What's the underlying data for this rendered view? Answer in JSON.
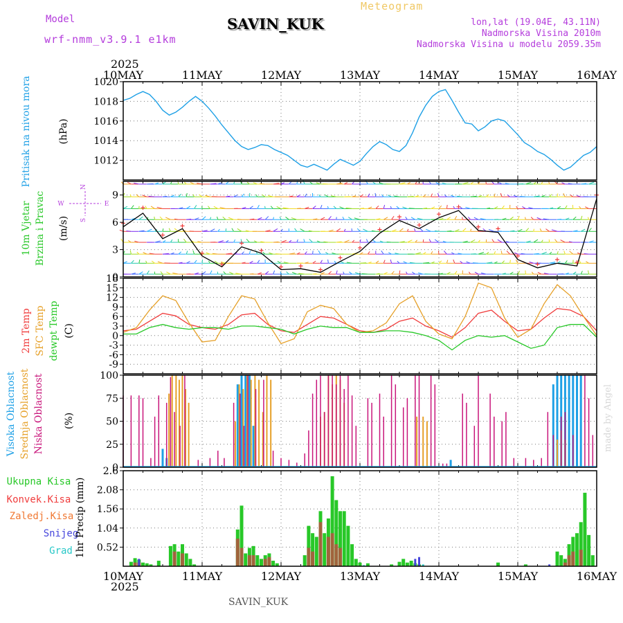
{
  "header": {
    "model_label": "Model",
    "model_name": "wrf-nmm_v3.9.1 e1km",
    "station": "SAVIN_KUK",
    "title": "Meteogram",
    "lonlat": "lon,lat (19.04E, 43.11N)",
    "elevation": "Nadmorska Visina 2010m",
    "model_elevation": "Nadmorska Visina u modelu 2059.35m",
    "year": "2025",
    "watermark": "made by Angel",
    "footer_station": "SAVIN_KUK"
  },
  "colors": {
    "pressure": "#1ea0e6",
    "temp2m": "#f03c3c",
    "sfc": "#e6a028",
    "dewpt": "#28c828",
    "high_cloud": "#1ea0e6",
    "mid_cloud": "#e6a028",
    "low_cloud": "#c8147a",
    "total_precip": "#28c828",
    "convective": "#f03c3c",
    "freezing": "#f07832",
    "snow": "#4646dc",
    "hail": "#28c8c8",
    "header_purple": "#b43cdc",
    "header_orange": "#f0c864"
  },
  "chart_data": [
    {
      "type": "line",
      "panel": "pressure",
      "ylabels": [
        "Pritisak na nivou mora",
        "(hPa)"
      ],
      "ylim": [
        1010,
        1020
      ],
      "yticks": [
        1012,
        1014,
        1016,
        1018,
        1020
      ],
      "xlabels": [
        "10MAY",
        "11MAY",
        "12MAY",
        "13MAY",
        "14MAY",
        "15MAY",
        "16MAY"
      ],
      "series": [
        {
          "x": [
            0,
            0.083,
            0.167,
            0.25,
            0.333,
            0.417,
            0.5,
            0.583,
            0.667,
            0.75,
            0.833,
            0.917,
            1.0,
            1.083,
            1.167,
            1.25,
            1.333,
            1.417,
            1.5,
            1.583,
            1.667,
            1.75,
            1.833,
            1.917,
            2.0,
            2.083,
            2.167,
            2.25,
            2.333,
            2.417,
            2.5,
            2.583,
            2.667,
            2.75,
            2.833,
            2.917,
            3.0,
            3.083,
            3.167,
            3.25,
            3.333,
            3.417,
            3.5,
            3.583,
            3.667,
            3.75,
            3.833,
            3.917,
            4.0,
            4.083,
            4.167,
            4.25,
            4.333,
            4.417,
            4.5,
            4.583,
            4.667,
            4.75,
            4.833,
            4.917,
            5.0,
            5.083,
            5.167,
            5.25,
            5.333,
            5.417,
            5.5,
            5.583,
            5.667,
            5.75,
            5.833,
            5.917,
            6.0
          ],
          "values": [
            1018.1,
            1018.3,
            1018.7,
            1019.0,
            1018.7,
            1018.0,
            1017.1,
            1016.6,
            1016.9,
            1017.4,
            1018.0,
            1018.5,
            1018.0,
            1017.3,
            1016.5,
            1015.6,
            1014.8,
            1014.0,
            1013.4,
            1013.1,
            1013.3,
            1013.6,
            1013.5,
            1013.1,
            1012.8,
            1012.5,
            1012.0,
            1011.5,
            1011.3,
            1011.6,
            1011.3,
            1011.0,
            1011.6,
            1012.1,
            1011.8,
            1011.5,
            1011.9,
            1012.7,
            1013.4,
            1013.9,
            1013.6,
            1013.1,
            1012.9,
            1013.5,
            1014.8,
            1016.4,
            1017.6,
            1018.5,
            1019.0,
            1019.2,
            1018.1,
            1016.9,
            1015.8,
            1015.7,
            1015.0,
            1015.4,
            1016.0,
            1016.2,
            1016.0,
            1015.3,
            1014.6,
            1013.8,
            1013.4,
            1012.9,
            1012.6,
            1012.1,
            1011.5,
            1011.0,
            1011.3,
            1011.9,
            1012.5,
            1012.8,
            1013.4
          ]
        }
      ]
    },
    {
      "type": "line",
      "panel": "wind",
      "ylabels": [
        "10m Vjetar",
        "Brzina i Pravac",
        "(m/s)"
      ],
      "compass": [
        "N",
        "S",
        "W",
        "E"
      ],
      "ylim": [
        0,
        10.5
      ],
      "yticks": [
        0,
        3,
        6,
        9
      ],
      "barb_levels": [
        0.3,
        1.5,
        2.5,
        3.8,
        5.0,
        6.3,
        7.5,
        8.8,
        10.2
      ],
      "series": [
        {
          "name": "",
          "x": [
            0,
            0.25,
            0.5,
            0.75,
            1.0,
            1.25,
            1.5,
            1.75,
            2.0,
            2.25,
            2.5,
            2.75,
            3.0,
            3.25,
            3.5,
            3.75,
            4.0,
            4.25,
            4.5,
            4.75,
            5.0,
            5.25,
            5.5,
            5.75,
            6.0
          ],
          "values": [
            5.5,
            7.0,
            4.2,
            5.3,
            2.3,
            1.1,
            3.3,
            2.6,
            0.8,
            0.9,
            0.5,
            1.7,
            2.8,
            4.8,
            6.2,
            5.3,
            6.5,
            7.3,
            5.1,
            4.9,
            1.9,
            1.0,
            1.5,
            1.2,
            8.6
          ]
        },
        {
          "name": "",
          "x": [
            0,
            0.25,
            0.5,
            0.75,
            1.0,
            1.25,
            1.5,
            1.75,
            2.0,
            2.25,
            2.5,
            2.75,
            3.0,
            3.25,
            3.5,
            3.75,
            4.0,
            4.25,
            4.5,
            4.75,
            5.0,
            5.25,
            5.5,
            5.75,
            6.0
          ],
          "values": [
            5.9,
            7.6,
            4.6,
            5.6,
            2.6,
            1.4,
            3.7,
            2.9,
            1.1,
            1.2,
            0.8,
            2.1,
            3.2,
            5.2,
            6.6,
            5.7,
            6.9,
            7.7,
            5.5,
            5.3,
            2.3,
            1.4,
            1.9,
            1.6,
            9.0
          ]
        }
      ]
    },
    {
      "type": "line",
      "panel": "temperature",
      "ylabels": [
        "2m Temp",
        "SFC Temp",
        "dewpt Temp",
        "(C)"
      ],
      "ylim": [
        -12,
        18
      ],
      "yticks": [
        -9,
        -6,
        -3,
        0,
        3,
        6,
        9,
        12,
        15,
        18
      ],
      "series": [
        {
          "name": "2m Temp",
          "x": [
            0,
            0.167,
            0.333,
            0.5,
            0.667,
            0.833,
            1.0,
            1.167,
            1.333,
            1.5,
            1.667,
            1.833,
            2.0,
            2.167,
            2.333,
            2.5,
            2.667,
            2.833,
            3.0,
            3.167,
            3.333,
            3.5,
            3.667,
            3.833,
            4.0,
            4.167,
            4.333,
            4.5,
            4.667,
            4.833,
            5.0,
            5.167,
            5.333,
            5.5,
            5.667,
            5.833,
            6.0
          ],
          "values": [
            1.5,
            2.0,
            4.5,
            7.0,
            6.2,
            3.5,
            2.5,
            2.0,
            3.5,
            6.5,
            7.0,
            3.5,
            1.5,
            1.0,
            3.5,
            6.0,
            5.5,
            3.5,
            1.5,
            1.0,
            2.0,
            4.5,
            5.5,
            3.0,
            1.5,
            -0.5,
            2.5,
            7.0,
            8.0,
            4.5,
            1.5,
            2.0,
            5.5,
            8.5,
            8.0,
            6.0,
            1.5
          ]
        },
        {
          "name": "SFC Temp",
          "x": [
            0,
            0.167,
            0.333,
            0.5,
            0.667,
            0.833,
            1.0,
            1.167,
            1.333,
            1.5,
            1.667,
            1.833,
            2.0,
            2.167,
            2.333,
            2.5,
            2.667,
            2.833,
            3.0,
            3.167,
            3.333,
            3.5,
            3.667,
            3.833,
            4.0,
            4.167,
            4.333,
            4.5,
            4.667,
            4.833,
            5.0,
            5.167,
            5.333,
            5.5,
            5.667,
            5.833,
            6.0
          ],
          "values": [
            1.0,
            2.5,
            8.0,
            12.5,
            11.0,
            4.0,
            -2.0,
            -1.5,
            6.0,
            12.5,
            11.5,
            4.0,
            -2.5,
            -1.0,
            7.5,
            9.5,
            8.5,
            3.5,
            1.0,
            1.5,
            4.0,
            10.0,
            12.5,
            4.5,
            0.5,
            -1.0,
            6.0,
            16.5,
            15.0,
            5.5,
            -0.5,
            2.0,
            10.0,
            16.0,
            12.5,
            6.0,
            0.0
          ]
        },
        {
          "name": "dewpt Temp",
          "x": [
            0,
            0.167,
            0.333,
            0.5,
            0.667,
            0.833,
            1.0,
            1.167,
            1.333,
            1.5,
            1.667,
            1.833,
            2.0,
            2.167,
            2.333,
            2.5,
            2.667,
            2.833,
            3.0,
            3.167,
            3.333,
            3.5,
            3.667,
            3.833,
            4.0,
            4.167,
            4.333,
            4.5,
            4.667,
            4.833,
            5.0,
            5.167,
            5.333,
            5.5,
            5.667,
            5.833,
            6.0
          ],
          "values": [
            0.5,
            0.5,
            2.5,
            3.5,
            2.5,
            2.0,
            2.5,
            2.5,
            2.0,
            3.0,
            3.0,
            2.5,
            2.0,
            0.5,
            2.0,
            3.0,
            2.5,
            2.5,
            1.0,
            1.0,
            1.5,
            1.5,
            1.0,
            0.0,
            -1.5,
            -4.5,
            -1.5,
            0.0,
            -0.5,
            0.0,
            -2.0,
            -4.0,
            -3.0,
            2.5,
            3.5,
            3.5,
            -0.5
          ]
        }
      ]
    },
    {
      "type": "bar",
      "panel": "cloud",
      "ylabels": [
        "Visoka Oblacnost",
        "Srednja Oblacnost",
        "Niska Oblacnost",
        "(%)"
      ],
      "ylim": [
        0,
        100
      ],
      "yticks": [
        0,
        25,
        50,
        75,
        100
      ],
      "series": [
        {
          "name": "Visoka Oblacnost",
          "x": [
            0.5,
            0.55,
            1.45,
            1.5,
            1.55,
            1.6,
            1.65,
            4.15,
            5.45,
            5.5,
            5.55,
            5.6,
            5.65,
            5.7,
            5.75,
            5.8
          ],
          "values": [
            20,
            10,
            90,
            100,
            100,
            100,
            45,
            8,
            90,
            100,
            100,
            100,
            100,
            100,
            100,
            100
          ]
        },
        {
          "name": "Srednja Oblacnost",
          "x": [
            0.58,
            0.62,
            0.67,
            0.71,
            0.75,
            0.79,
            0.83,
            1.42,
            1.47,
            1.52,
            1.57,
            1.62,
            1.67,
            1.72,
            1.77,
            1.82,
            1.87,
            2.5,
            2.55,
            2.6,
            2.65,
            2.7,
            2.75,
            2.8,
            3.72,
            3.8,
            3.85,
            5.5,
            5.55,
            5.6
          ],
          "values": [
            80,
            100,
            100,
            95,
            100,
            85,
            70,
            50,
            90,
            85,
            100,
            95,
            100,
            95,
            60,
            100,
            95,
            55,
            60,
            100,
            90,
            100,
            95,
            70,
            55,
            55,
            50,
            30,
            40,
            30
          ]
        },
        {
          "name": "Niska Oblacnost",
          "x": [
            0.0,
            0.1,
            0.2,
            0.25,
            0.35,
            0.4,
            0.45,
            0.55,
            0.6,
            0.65,
            0.72,
            0.78,
            0.95,
            1.1,
            1.2,
            1.28,
            1.4,
            1.48,
            1.53,
            1.58,
            1.68,
            1.78,
            1.9,
            2.0,
            2.1,
            2.2,
            2.3,
            2.35,
            2.4,
            2.45,
            2.5,
            2.55,
            2.6,
            2.65,
            2.7,
            2.75,
            2.8,
            2.85,
            2.9,
            2.95,
            3.1,
            3.15,
            3.25,
            3.3,
            3.4,
            3.45,
            3.55,
            3.6,
            3.7,
            3.75,
            3.9,
            3.95,
            4.05,
            4.1,
            4.3,
            4.35,
            4.45,
            4.5,
            4.65,
            4.7,
            4.8,
            4.85,
            4.95,
            5.1,
            5.2,
            5.3,
            5.38,
            5.45,
            5.55,
            5.6,
            5.7,
            5.85,
            5.9,
            5.95
          ],
          "values": [
            78,
            78,
            78,
            75,
            10,
            55,
            78,
            70,
            98,
            60,
            45,
            100,
            8,
            10,
            18,
            10,
            70,
            80,
            45,
            100,
            85,
            95,
            18,
            10,
            8,
            5,
            15,
            40,
            80,
            95,
            100,
            60,
            100,
            100,
            90,
            100,
            85,
            100,
            78,
            45,
            75,
            70,
            80,
            55,
            100,
            90,
            65,
            75,
            100,
            100,
            100,
            90,
            4,
            4,
            80,
            70,
            45,
            100,
            80,
            55,
            50,
            60,
            10,
            10,
            8,
            10,
            60,
            35,
            55,
            60,
            35,
            100,
            75,
            35
          ]
        }
      ]
    },
    {
      "type": "bar",
      "panel": "precipitation",
      "ylabels": [
        "Ukupna Kisa",
        "Konvek.Kisa",
        "Zaledj.Kisa",
        "Snijeg",
        "Grad",
        "1hr Precip (mm)"
      ],
      "ylim": [
        0,
        2.6
      ],
      "yticks": [
        0.52,
        1.04,
        1.56,
        2.08,
        2.6
      ],
      "series": [
        {
          "name": "Ukupna Kisa",
          "x": [
            0.1,
            0.15,
            0.2,
            0.25,
            0.3,
            0.35,
            0.45,
            0.6,
            0.65,
            0.7,
            0.75,
            0.8,
            0.85,
            0.9,
            1.45,
            1.5,
            1.55,
            1.6,
            1.65,
            1.7,
            1.75,
            1.8,
            1.85,
            1.9,
            1.95,
            2.3,
            2.35,
            2.4,
            2.45,
            2.5,
            2.55,
            2.6,
            2.65,
            2.7,
            2.75,
            2.8,
            2.85,
            2.9,
            2.95,
            3.0,
            3.1,
            3.4,
            3.5,
            3.55,
            3.6,
            3.65,
            3.7,
            3.75,
            4.75,
            5.1,
            5.5,
            5.55,
            5.6,
            5.65,
            5.7,
            5.75,
            5.8,
            5.85,
            5.9,
            5.95
          ],
          "values": [
            0.12,
            0.22,
            0.18,
            0.1,
            0.08,
            0.05,
            0.15,
            0.55,
            0.6,
            0.4,
            0.6,
            0.35,
            0.2,
            0.05,
            1.0,
            1.65,
            0.35,
            0.5,
            0.55,
            0.3,
            0.2,
            0.3,
            0.35,
            0.15,
            0.08,
            0.3,
            1.1,
            0.9,
            0.8,
            1.5,
            0.9,
            1.3,
            2.45,
            1.8,
            1.5,
            1.5,
            1.1,
            0.6,
            0.2,
            0.1,
            0.08,
            0.05,
            0.12,
            0.2,
            0.1,
            0.15,
            0.08,
            0.05,
            0.1,
            0.05,
            0.4,
            0.3,
            0.2,
            0.6,
            0.8,
            0.9,
            1.2,
            2.0,
            0.85,
            0.3
          ]
        },
        {
          "name": "Konvek.Kisa",
          "x": [
            0.15,
            0.2,
            0.65,
            0.75,
            1.45,
            1.5,
            1.6,
            1.65,
            1.8,
            1.85,
            2.35,
            2.4,
            2.5,
            2.6,
            2.65,
            2.7,
            2.75,
            5.6,
            5.65,
            5.7,
            5.8
          ],
          "values": [
            0.1,
            0.1,
            0.4,
            0.35,
            0.75,
            0.5,
            0.3,
            0.3,
            0.2,
            0.25,
            0.5,
            0.4,
            1.2,
            0.8,
            0.9,
            0.6,
            0.5,
            0.1,
            0.3,
            0.4,
            0.45
          ]
        },
        {
          "name": "Snijeg",
          "x": [
            0.2,
            3.7,
            3.75,
            5.4
          ],
          "values": [
            0.2,
            0.2,
            0.25,
            0.05
          ]
        },
        {
          "name": "Grad",
          "x": [
            3.05,
            3.8
          ],
          "values": [
            0.03,
            0.05
          ]
        }
      ]
    }
  ]
}
